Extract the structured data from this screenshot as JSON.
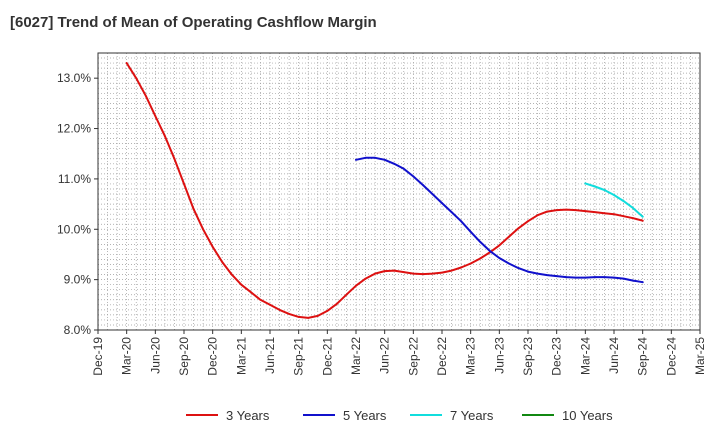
{
  "chart_data": {
    "type": "line",
    "title": "[6027]  Trend of Mean of Operating Cashflow Margin",
    "xlabel": "",
    "ylabel": "",
    "x_ticks": [
      "Dec-19",
      "Mar-20",
      "Jun-20",
      "Sep-20",
      "Dec-20",
      "Mar-21",
      "Jun-21",
      "Sep-21",
      "Dec-21",
      "Mar-22",
      "Jun-22",
      "Sep-22",
      "Dec-22",
      "Mar-23",
      "Jun-23",
      "Sep-23",
      "Dec-23",
      "Mar-24",
      "Jun-24",
      "Sep-24",
      "Dec-24",
      "Mar-25"
    ],
    "y_ticks": [
      "8.0%",
      "9.0%",
      "10.0%",
      "11.0%",
      "12.0%",
      "13.0%"
    ],
    "ylim": [
      8.0,
      13.5
    ],
    "grid": true,
    "legend_position": "bottom",
    "series": [
      {
        "name": "3 Years",
        "color": "#dd1111",
        "x": [
          "Mar-20",
          "Apr-20",
          "May-20",
          "Jun-20",
          "Jul-20",
          "Aug-20",
          "Sep-20",
          "Oct-20",
          "Nov-20",
          "Dec-20",
          "Jan-21",
          "Feb-21",
          "Mar-21",
          "Apr-21",
          "May-21",
          "Jun-21",
          "Jul-21",
          "Aug-21",
          "Sep-21",
          "Oct-21",
          "Nov-21",
          "Dec-21",
          "Jan-22",
          "Feb-22",
          "Mar-22",
          "Apr-22",
          "May-22",
          "Jun-22",
          "Jul-22",
          "Aug-22",
          "Sep-22",
          "Oct-22",
          "Nov-22",
          "Dec-22",
          "Jan-23",
          "Feb-23",
          "Mar-23",
          "Apr-23",
          "May-23",
          "Jun-23",
          "Jul-23",
          "Aug-23",
          "Sep-23",
          "Oct-23",
          "Nov-23",
          "Dec-23",
          "Jan-24",
          "Feb-24",
          "Mar-24",
          "Apr-24",
          "May-24",
          "Jun-24",
          "Jul-24",
          "Aug-24",
          "Sep-24"
        ],
        "values": [
          13.3,
          13.0,
          12.65,
          12.25,
          11.85,
          11.4,
          10.9,
          10.4,
          10.0,
          9.65,
          9.35,
          9.1,
          8.9,
          8.75,
          8.6,
          8.5,
          8.4,
          8.32,
          8.26,
          8.24,
          8.28,
          8.38,
          8.52,
          8.7,
          8.88,
          9.02,
          9.12,
          9.17,
          9.18,
          9.15,
          9.12,
          9.11,
          9.12,
          9.14,
          9.18,
          9.24,
          9.32,
          9.42,
          9.54,
          9.68,
          9.85,
          10.02,
          10.16,
          10.28,
          10.35,
          10.38,
          10.39,
          10.38,
          10.36,
          10.34,
          10.32,
          10.3,
          10.26,
          10.22,
          10.17
        ]
      },
      {
        "name": "5 Years",
        "color": "#1111cc",
        "x": [
          "Mar-22",
          "Apr-22",
          "May-22",
          "Jun-22",
          "Jul-22",
          "Aug-22",
          "Sep-22",
          "Oct-22",
          "Nov-22",
          "Dec-22",
          "Jan-23",
          "Feb-23",
          "Mar-23",
          "Apr-23",
          "May-23",
          "Jun-23",
          "Jul-23",
          "Aug-23",
          "Sep-23",
          "Oct-23",
          "Nov-23",
          "Dec-23",
          "Jan-24",
          "Feb-24",
          "Mar-24",
          "Apr-24",
          "May-24",
          "Jun-24",
          "Jul-24",
          "Aug-24",
          "Sep-24"
        ],
        "values": [
          11.38,
          11.42,
          11.42,
          11.38,
          11.3,
          11.2,
          11.05,
          10.88,
          10.7,
          10.52,
          10.34,
          10.16,
          9.95,
          9.75,
          9.57,
          9.43,
          9.32,
          9.23,
          9.16,
          9.12,
          9.09,
          9.07,
          9.05,
          9.04,
          9.04,
          9.05,
          9.05,
          9.04,
          9.02,
          8.98,
          8.95
        ]
      },
      {
        "name": "7 Years",
        "color": "#11dddd",
        "x": [
          "Mar-24",
          "Apr-24",
          "May-24",
          "Jun-24",
          "Jul-24",
          "Aug-24",
          "Sep-24"
        ],
        "values": [
          10.91,
          10.85,
          10.78,
          10.68,
          10.56,
          10.42,
          10.25
        ]
      },
      {
        "name": "10 Years",
        "color": "#118811",
        "x": [],
        "values": []
      }
    ]
  }
}
